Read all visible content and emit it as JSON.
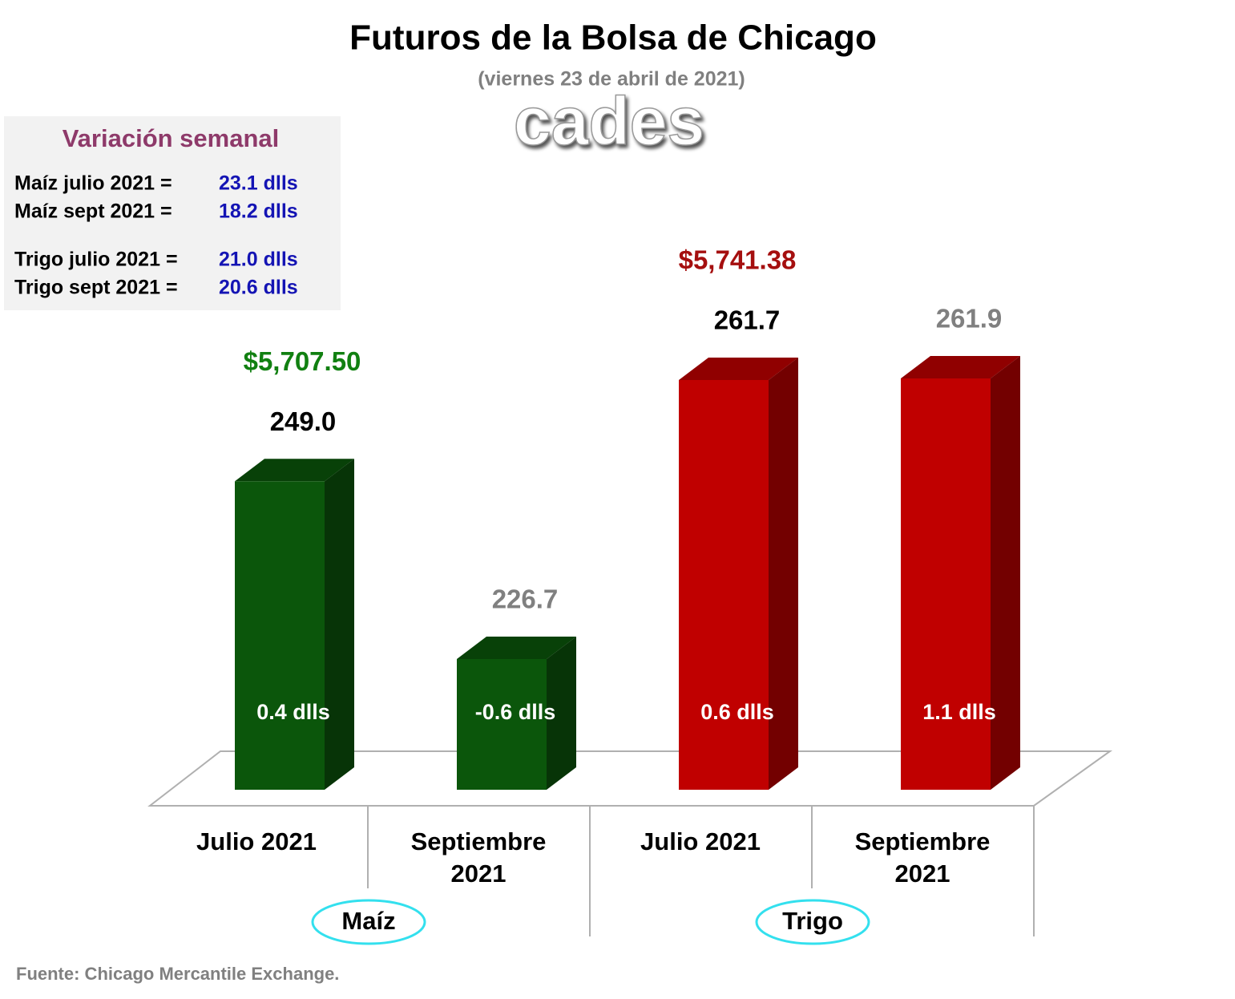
{
  "chart_data": {
    "type": "bar3d",
    "title": "Futuros de la Bolsa de Chicago",
    "subtitle": "(viernes 23 de abril de 2021)",
    "watermark": "cades",
    "categories": [
      "Julio 2021",
      "Septiembre 2021",
      "Julio 2021",
      "Septiembre 2021"
    ],
    "values": [
      249.0,
      226.7,
      261.7,
      261.9
    ],
    "value_labels": [
      "249.0",
      "226.7",
      "261.7",
      "261.9"
    ],
    "value_label_colors": [
      "#000000",
      "#808080",
      "#000000",
      "#808080"
    ],
    "colors": [
      "#0b560b",
      "#0b560b",
      "#c00000",
      "#c00000"
    ],
    "change_labels": [
      "0.4 dlls",
      "-0.6 dlls",
      "0.6 dlls",
      "1.1 dlls"
    ],
    "groups": [
      {
        "name": "Maíz",
        "total": "$5,707.50",
        "color": "#118011"
      },
      {
        "name": "Trigo",
        "total": "$5,741.38",
        "color": "#a50f0f"
      }
    ],
    "info_box": {
      "title": "Variación semanal",
      "rows": [
        {
          "label": "Maíz julio 2021 =",
          "value": "23.1 dlls"
        },
        {
          "label": "Maíz sept 2021 =",
          "value": "18.2 dlls"
        },
        {
          "label": "Trigo julio 2021 =",
          "value": "21.0 dlls"
        },
        {
          "label": "Trigo sept 2021 =",
          "value": "20.6 dlls"
        }
      ]
    },
    "source": "Fuente: Chicago Mercantile Exchange."
  }
}
